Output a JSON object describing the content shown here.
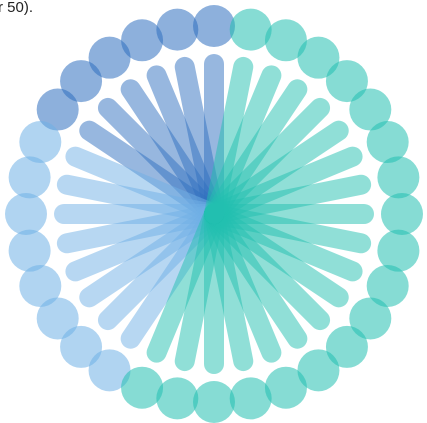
{
  "caption_fragment": "r 50)."
}
